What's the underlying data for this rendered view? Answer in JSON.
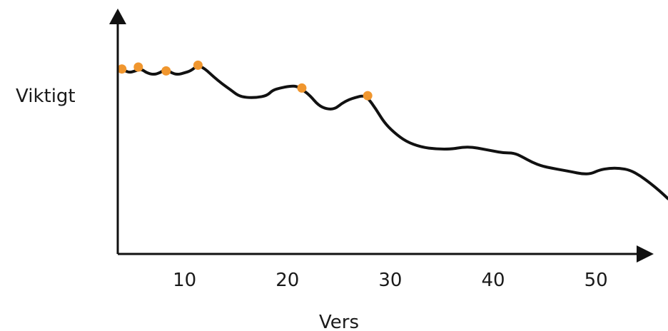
{
  "chart_data": {
    "type": "line",
    "xlabel": "Vers",
    "ylabel": "Viktigt",
    "xlim": [
      3.5,
      57
    ],
    "ylim": [
      0,
      100
    ],
    "xticks": [
      10,
      20,
      30,
      40,
      50
    ],
    "grid": false,
    "series": [
      {
        "color": "#111111",
        "points": [
          [
            3.9,
            97
          ],
          [
            4.6,
            95
          ],
          [
            5.2,
            96
          ],
          [
            5.8,
            97
          ],
          [
            6.3,
            95
          ],
          [
            7.0,
            94
          ],
          [
            7.6,
            95
          ],
          [
            8.2,
            97
          ],
          [
            8.7,
            95
          ],
          [
            9.3,
            94
          ],
          [
            10.0,
            95
          ],
          [
            10.6,
            96
          ],
          [
            11.3,
            99
          ],
          [
            12.0,
            97
          ],
          [
            12.8,
            93
          ],
          [
            13.7,
            89
          ],
          [
            14.5,
            86
          ],
          [
            15.2,
            83
          ],
          [
            16.0,
            82
          ],
          [
            17.0,
            82
          ],
          [
            18.0,
            83
          ],
          [
            18.6,
            86
          ],
          [
            19.3,
            87
          ],
          [
            20.2,
            88
          ],
          [
            20.9,
            88
          ],
          [
            21.5,
            86
          ],
          [
            22.2,
            83
          ],
          [
            23.0,
            78
          ],
          [
            23.8,
            76
          ],
          [
            24.6,
            76
          ],
          [
            25.3,
            79
          ],
          [
            26.0,
            81
          ],
          [
            26.6,
            82
          ],
          [
            27.3,
            83
          ],
          [
            27.8,
            82
          ],
          [
            28.6,
            76
          ],
          [
            29.4,
            69
          ],
          [
            30.3,
            64
          ],
          [
            31.5,
            59
          ],
          [
            33.0,
            56
          ],
          [
            34.5,
            55
          ],
          [
            36.0,
            55
          ],
          [
            37.0,
            56
          ],
          [
            38.0,
            56
          ],
          [
            39.0,
            55
          ],
          [
            40.0,
            54
          ],
          [
            41.0,
            53
          ],
          [
            42.0,
            53
          ],
          [
            42.8,
            51
          ],
          [
            43.8,
            48
          ],
          [
            44.8,
            46
          ],
          [
            45.7,
            45
          ],
          [
            46.7,
            44
          ],
          [
            47.7,
            43
          ],
          [
            48.6,
            42
          ],
          [
            49.5,
            42
          ],
          [
            50.3,
            44
          ],
          [
            51.3,
            45
          ],
          [
            52.3,
            45
          ],
          [
            53.3,
            44
          ],
          [
            54.3,
            41
          ],
          [
            55.3,
            37
          ],
          [
            56.2,
            33
          ],
          [
            57.0,
            29
          ]
        ]
      }
    ],
    "markers": {
      "color": "#f0962e",
      "points": [
        [
          3.9,
          97
        ],
        [
          5.5,
          98
        ],
        [
          8.2,
          96
        ],
        [
          11.3,
          99
        ],
        [
          21.4,
          87
        ],
        [
          27.8,
          83
        ]
      ]
    }
  }
}
